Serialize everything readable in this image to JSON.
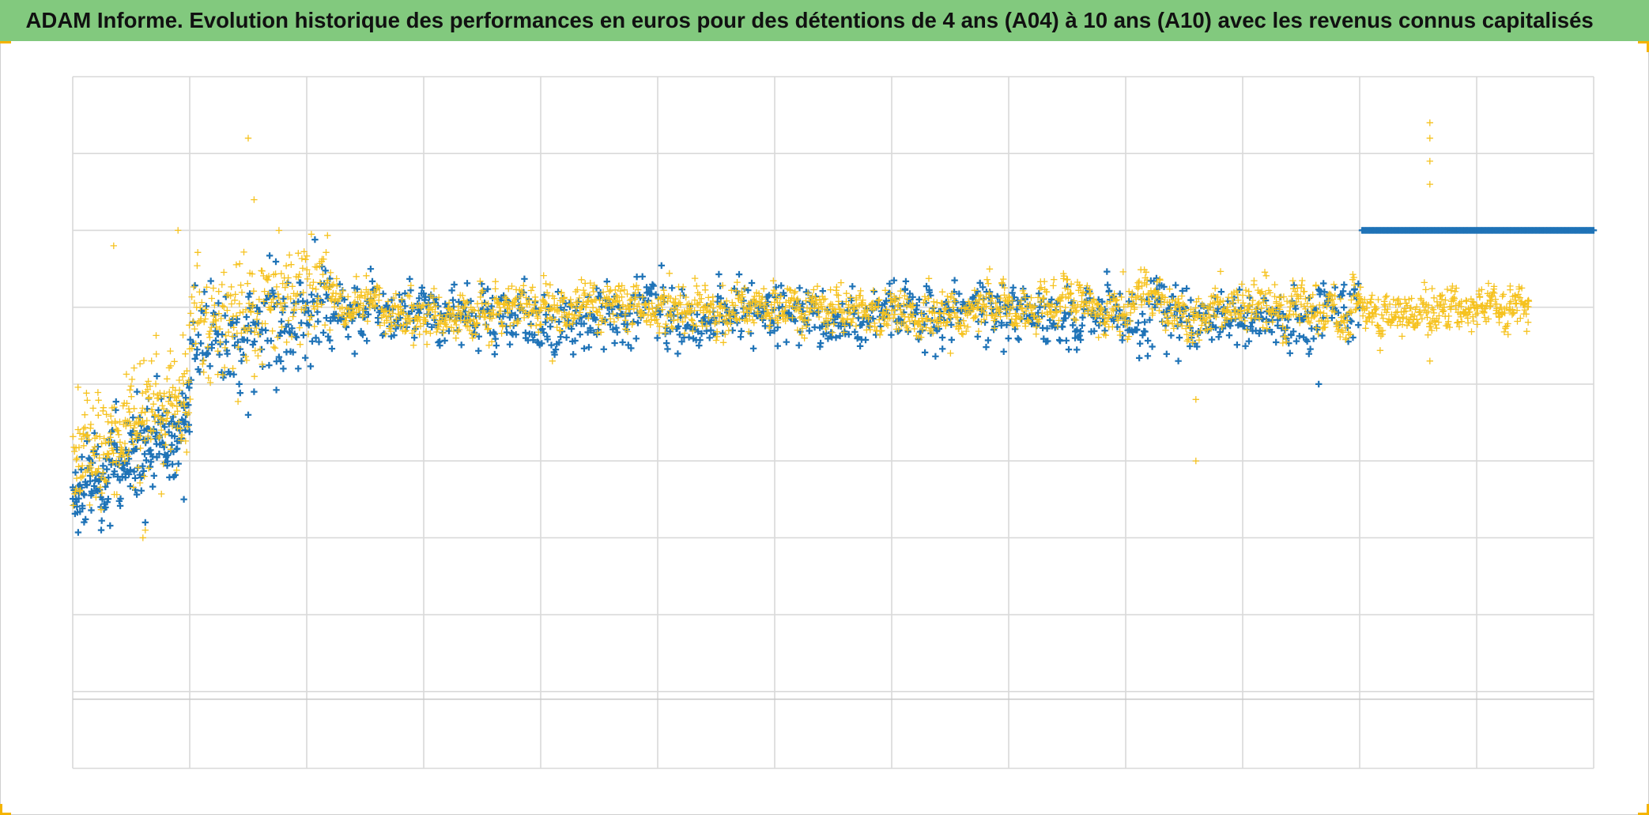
{
  "title": "ADAM Informe. Evolution historique des performances en euros pour des détentions de 4 ans (A04) à 10 ans (A10) avec les revenus connus capitalisés",
  "colors": {
    "title_background": "#82c97e",
    "series_a04": "#1f73b7",
    "series_a10": "#f6c21f",
    "grid": "#d9d9d9",
    "corner_accent": "#f5b400"
  },
  "chart_data": {
    "type": "scatter",
    "marker": "plus",
    "grid": true,
    "legend": "none",
    "tick_labels_visible": false,
    "xlim": [
      0,
      13
    ],
    "ylim": [
      -1,
      8
    ],
    "series": [
      {
        "color": "#1f73b7",
        "segments": [
          {
            "x": [
              0.0,
              1.0
            ],
            "base": [
              2.6,
              3.6
            ],
            "spread": 0.28,
            "count": 240
          },
          {
            "x": [
              1.0,
              2.2
            ],
            "base": [
              4.5,
              5.0
            ],
            "spread": 0.3,
            "count": 170
          },
          {
            "x": [
              2.2,
              11.0
            ],
            "base": [
              4.9,
              4.9
            ],
            "spread": 0.18,
            "count": 1150
          },
          {
            "x": [
              11.02,
              13.0
            ],
            "base": [
              6.0,
              6.0
            ],
            "spread": 0.0,
            "count": 230
          }
        ],
        "outliers": [
          [
            0.24,
            2.4
          ],
          [
            0.62,
            2.2
          ],
          [
            0.95,
            2.5
          ],
          [
            0.55,
            3.9
          ],
          [
            1.5,
            3.6
          ],
          [
            1.55,
            3.9
          ],
          [
            1.8,
            4.2
          ],
          [
            10.65,
            4.0
          ],
          [
            9.45,
            4.3
          ]
        ]
      },
      {
        "color": "#f6c21f",
        "segments": [
          {
            "x": [
              0.0,
              1.0
            ],
            "base": [
              3.0,
              3.8
            ],
            "spread": 0.35,
            "count": 260
          },
          {
            "x": [
              1.0,
              2.2
            ],
            "base": [
              4.8,
              5.2
            ],
            "spread": 0.35,
            "count": 220
          },
          {
            "x": [
              2.2,
              11.0
            ],
            "base": [
              5.0,
              5.0
            ],
            "spread": 0.13,
            "count": 1700
          },
          {
            "x": [
              11.0,
              12.45
            ],
            "base": [
              4.96,
              4.95
            ],
            "spread": 0.11,
            "count": 330
          }
        ],
        "outliers": [
          [
            0.6,
            2.0
          ],
          [
            0.62,
            2.1
          ],
          [
            1.5,
            7.2
          ],
          [
            1.55,
            6.4
          ],
          [
            0.35,
            5.8
          ],
          [
            0.9,
            6.0
          ],
          [
            4.1,
            4.3
          ],
          [
            9.6,
            3.0
          ],
          [
            9.6,
            3.8
          ],
          [
            11.6,
            7.4
          ],
          [
            11.6,
            7.2
          ],
          [
            11.6,
            6.9
          ],
          [
            11.6,
            6.6
          ],
          [
            11.6,
            4.3
          ]
        ]
      }
    ]
  }
}
